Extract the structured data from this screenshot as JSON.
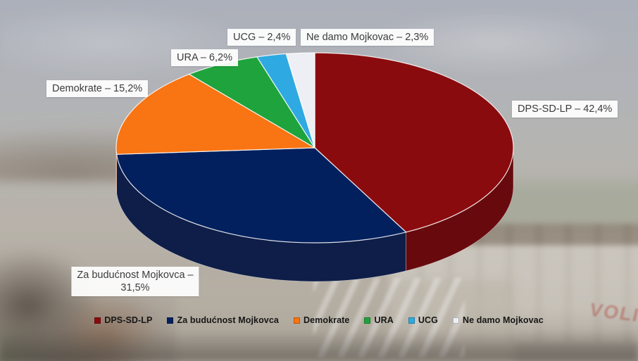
{
  "chart_data": {
    "type": "pie",
    "style": "3d",
    "title": "",
    "legend_position": "bottom",
    "start_angle_deg": 0,
    "direction": "clockwise",
    "slices": [
      {
        "label": "DPS-SD-LP",
        "value": 42.4,
        "callout": "DPS-SD-LP – 42,4%",
        "color": "#8A0B0E",
        "side_color": "#680A0D"
      },
      {
        "label": "Za budućnost Mojkovca",
        "value": 31.5,
        "callout": "Za budućnost Mojkovca –\n31,5%",
        "color": "#03205E",
        "side_color": "#0E1E48"
      },
      {
        "label": "Demokrate",
        "value": 15.2,
        "callout": "Demokrate – 15,2%",
        "color": "#F97412",
        "side_color": "#C2580B"
      },
      {
        "label": "URA",
        "value": 6.2,
        "callout": "URA – 6,2%",
        "color": "#1FA33C",
        "side_color": "#15762C"
      },
      {
        "label": "UCG",
        "value": 2.4,
        "callout": "UCG – 2,4%",
        "color": "#2FA9E1",
        "side_color": "#2180AC"
      },
      {
        "label": "Ne damo Mojkovac",
        "value": 2.3,
        "callout": "Ne damo Mojkovac – 2,3%",
        "color": "#EDEFF4",
        "side_color": "#C6CAD5"
      }
    ]
  },
  "background": {
    "store_sign": "VOLI"
  }
}
